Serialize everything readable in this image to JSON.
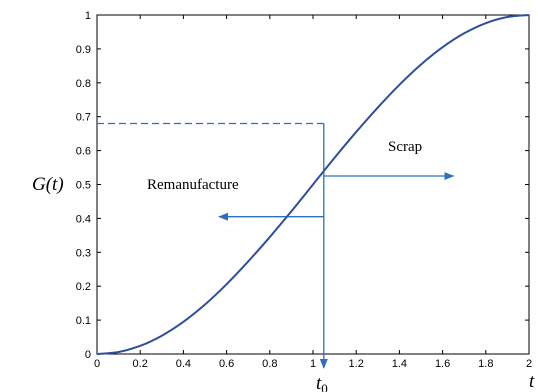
{
  "chart_data": {
    "type": "line",
    "x": [
      0,
      0.1,
      0.2,
      0.3,
      0.4,
      0.5,
      0.6,
      0.7,
      0.8,
      0.9,
      1.0,
      1.1,
      1.2,
      1.3,
      1.4,
      1.5,
      1.6,
      1.7,
      1.8,
      1.9,
      2.0
    ],
    "series": [
      {
        "values": [
          0,
          0.006,
          0.024,
          0.054,
          0.095,
          0.146,
          0.206,
          0.273,
          0.345,
          0.421,
          0.5,
          0.579,
          0.655,
          0.727,
          0.794,
          0.854,
          0.905,
          0.946,
          0.976,
          0.994,
          1.0
        ]
      }
    ],
    "xlim": [
      0,
      2
    ],
    "ylim": [
      0,
      1
    ],
    "xticks": [
      "0",
      "0.2",
      "0.4",
      "0.6",
      "0.8",
      "1",
      "1.2",
      "1.4",
      "1.6",
      "1.8",
      "2"
    ],
    "yticks": [
      "0",
      "0.1",
      "0.2",
      "0.3",
      "0.4",
      "0.5",
      "0.6",
      "0.7",
      "0.8",
      "0.9",
      "1"
    ],
    "xlabel": "t",
    "ylabel": "G(t)",
    "grid": false,
    "line_color": "#2e4f9e",
    "annotation_color": "#2e6fc0",
    "threshold": {
      "label": "t0",
      "x": 1.05,
      "y": 0.68
    },
    "annotations": [
      {
        "text": "Scrap",
        "arrow_direction": "right"
      },
      {
        "text": "Remanufacture",
        "arrow_direction": "left"
      }
    ]
  }
}
